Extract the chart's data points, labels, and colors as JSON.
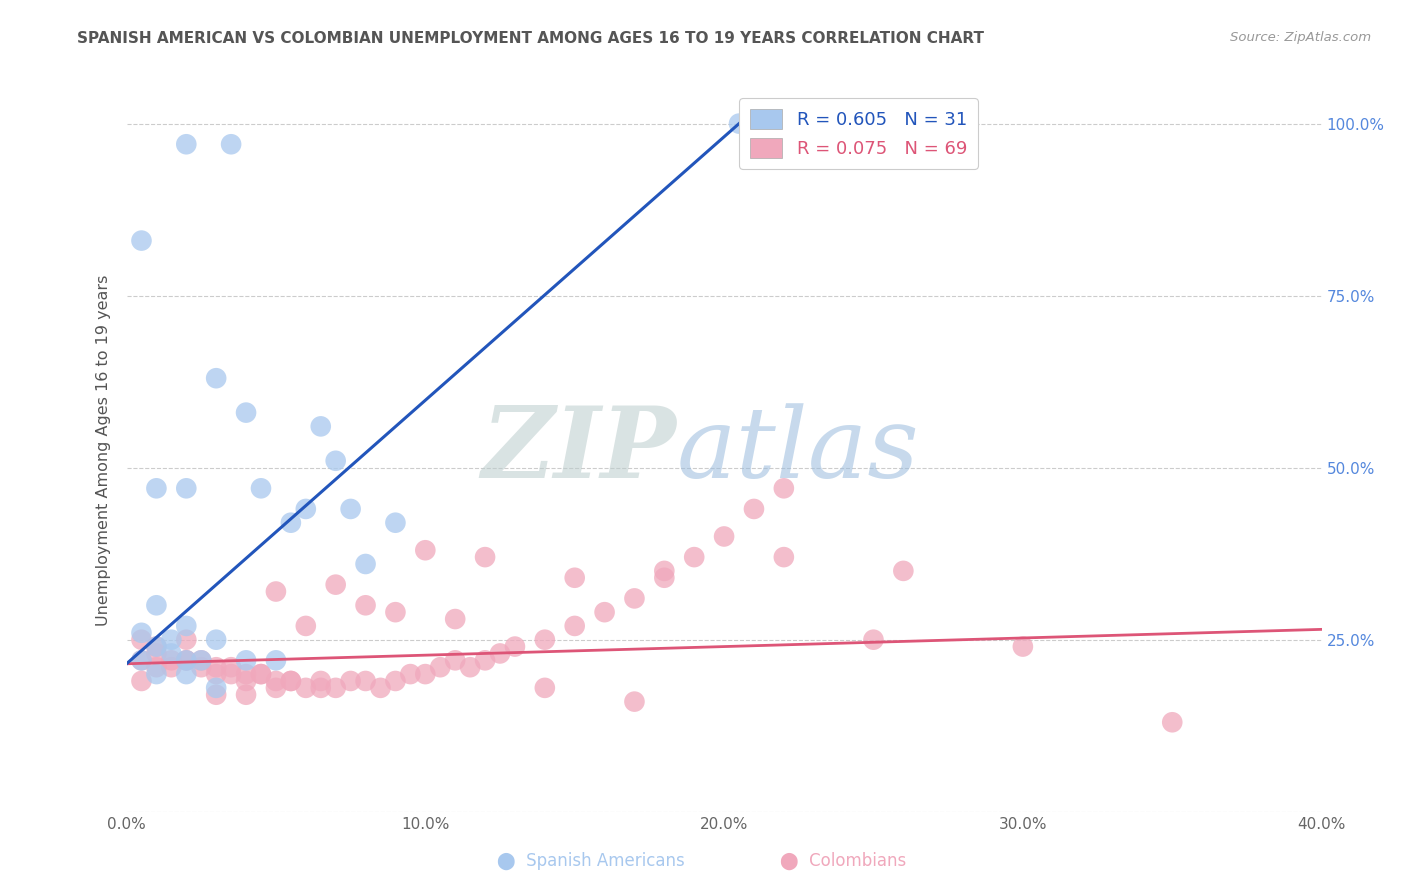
{
  "title": "SPANISH AMERICAN VS COLOMBIAN UNEMPLOYMENT AMONG AGES 16 TO 19 YEARS CORRELATION CHART",
  "source": "Source: ZipAtlas.com",
  "ylabel": "Unemployment Among Ages 16 to 19 years",
  "xlim": [
    0.0,
    0.4
  ],
  "ylim": [
    0.0,
    1.05
  ],
  "blue_R": 0.605,
  "blue_N": 31,
  "pink_R": 0.075,
  "pink_N": 69,
  "blue_color": "#A8C8EE",
  "pink_color": "#F0A8BC",
  "blue_line_color": "#2255BB",
  "pink_line_color": "#DD5577",
  "watermark_zip": "ZIP",
  "watermark_atlas": "atlas",
  "watermark_color_zip": "#BBCCDD",
  "watermark_color_atlas": "#99BBDD",
  "blue_x": [
    0.02,
    0.035,
    0.005,
    0.03,
    0.04,
    0.065,
    0.07,
    0.045,
    0.06,
    0.075,
    0.09,
    0.055,
    0.08,
    0.01,
    0.02,
    0.01,
    0.02,
    0.015,
    0.005,
    0.01,
    0.015,
    0.02,
    0.025,
    0.03,
    0.005,
    0.01,
    0.02,
    0.03,
    0.04,
    0.05,
    0.205
  ],
  "blue_y": [
    0.97,
    0.97,
    0.83,
    0.63,
    0.58,
    0.56,
    0.51,
    0.47,
    0.44,
    0.44,
    0.42,
    0.42,
    0.36,
    0.47,
    0.47,
    0.3,
    0.27,
    0.25,
    0.26,
    0.24,
    0.23,
    0.22,
    0.22,
    0.25,
    0.22,
    0.2,
    0.2,
    0.18,
    0.22,
    0.22,
    1.0
  ],
  "pink_x": [
    0.005,
    0.01,
    0.005,
    0.01,
    0.015,
    0.02,
    0.015,
    0.02,
    0.025,
    0.03,
    0.025,
    0.03,
    0.035,
    0.04,
    0.035,
    0.04,
    0.045,
    0.05,
    0.045,
    0.05,
    0.055,
    0.06,
    0.055,
    0.065,
    0.07,
    0.065,
    0.075,
    0.08,
    0.085,
    0.09,
    0.095,
    0.1,
    0.105,
    0.11,
    0.115,
    0.12,
    0.125,
    0.13,
    0.14,
    0.15,
    0.16,
    0.17,
    0.18,
    0.19,
    0.2,
    0.21,
    0.22,
    0.25,
    0.3,
    0.35,
    0.005,
    0.01,
    0.02,
    0.03,
    0.04,
    0.06,
    0.08,
    0.1,
    0.12,
    0.15,
    0.18,
    0.22,
    0.26,
    0.05,
    0.07,
    0.09,
    0.11,
    0.14,
    0.17
  ],
  "pink_y": [
    0.25,
    0.24,
    0.22,
    0.23,
    0.22,
    0.22,
    0.21,
    0.22,
    0.21,
    0.21,
    0.22,
    0.2,
    0.21,
    0.2,
    0.2,
    0.19,
    0.2,
    0.19,
    0.2,
    0.18,
    0.19,
    0.18,
    0.19,
    0.18,
    0.18,
    0.19,
    0.19,
    0.19,
    0.18,
    0.19,
    0.2,
    0.2,
    0.21,
    0.22,
    0.21,
    0.22,
    0.23,
    0.24,
    0.25,
    0.27,
    0.29,
    0.31,
    0.34,
    0.37,
    0.4,
    0.44,
    0.47,
    0.25,
    0.24,
    0.13,
    0.19,
    0.21,
    0.25,
    0.17,
    0.17,
    0.27,
    0.3,
    0.38,
    0.37,
    0.34,
    0.35,
    0.37,
    0.35,
    0.32,
    0.33,
    0.29,
    0.28,
    0.18,
    0.16
  ],
  "blue_trend_x": [
    0.0,
    0.205
  ],
  "blue_trend_y": [
    0.215,
    1.0
  ],
  "pink_trend_x": [
    0.0,
    0.4
  ],
  "pink_trend_y": [
    0.215,
    0.265
  ]
}
